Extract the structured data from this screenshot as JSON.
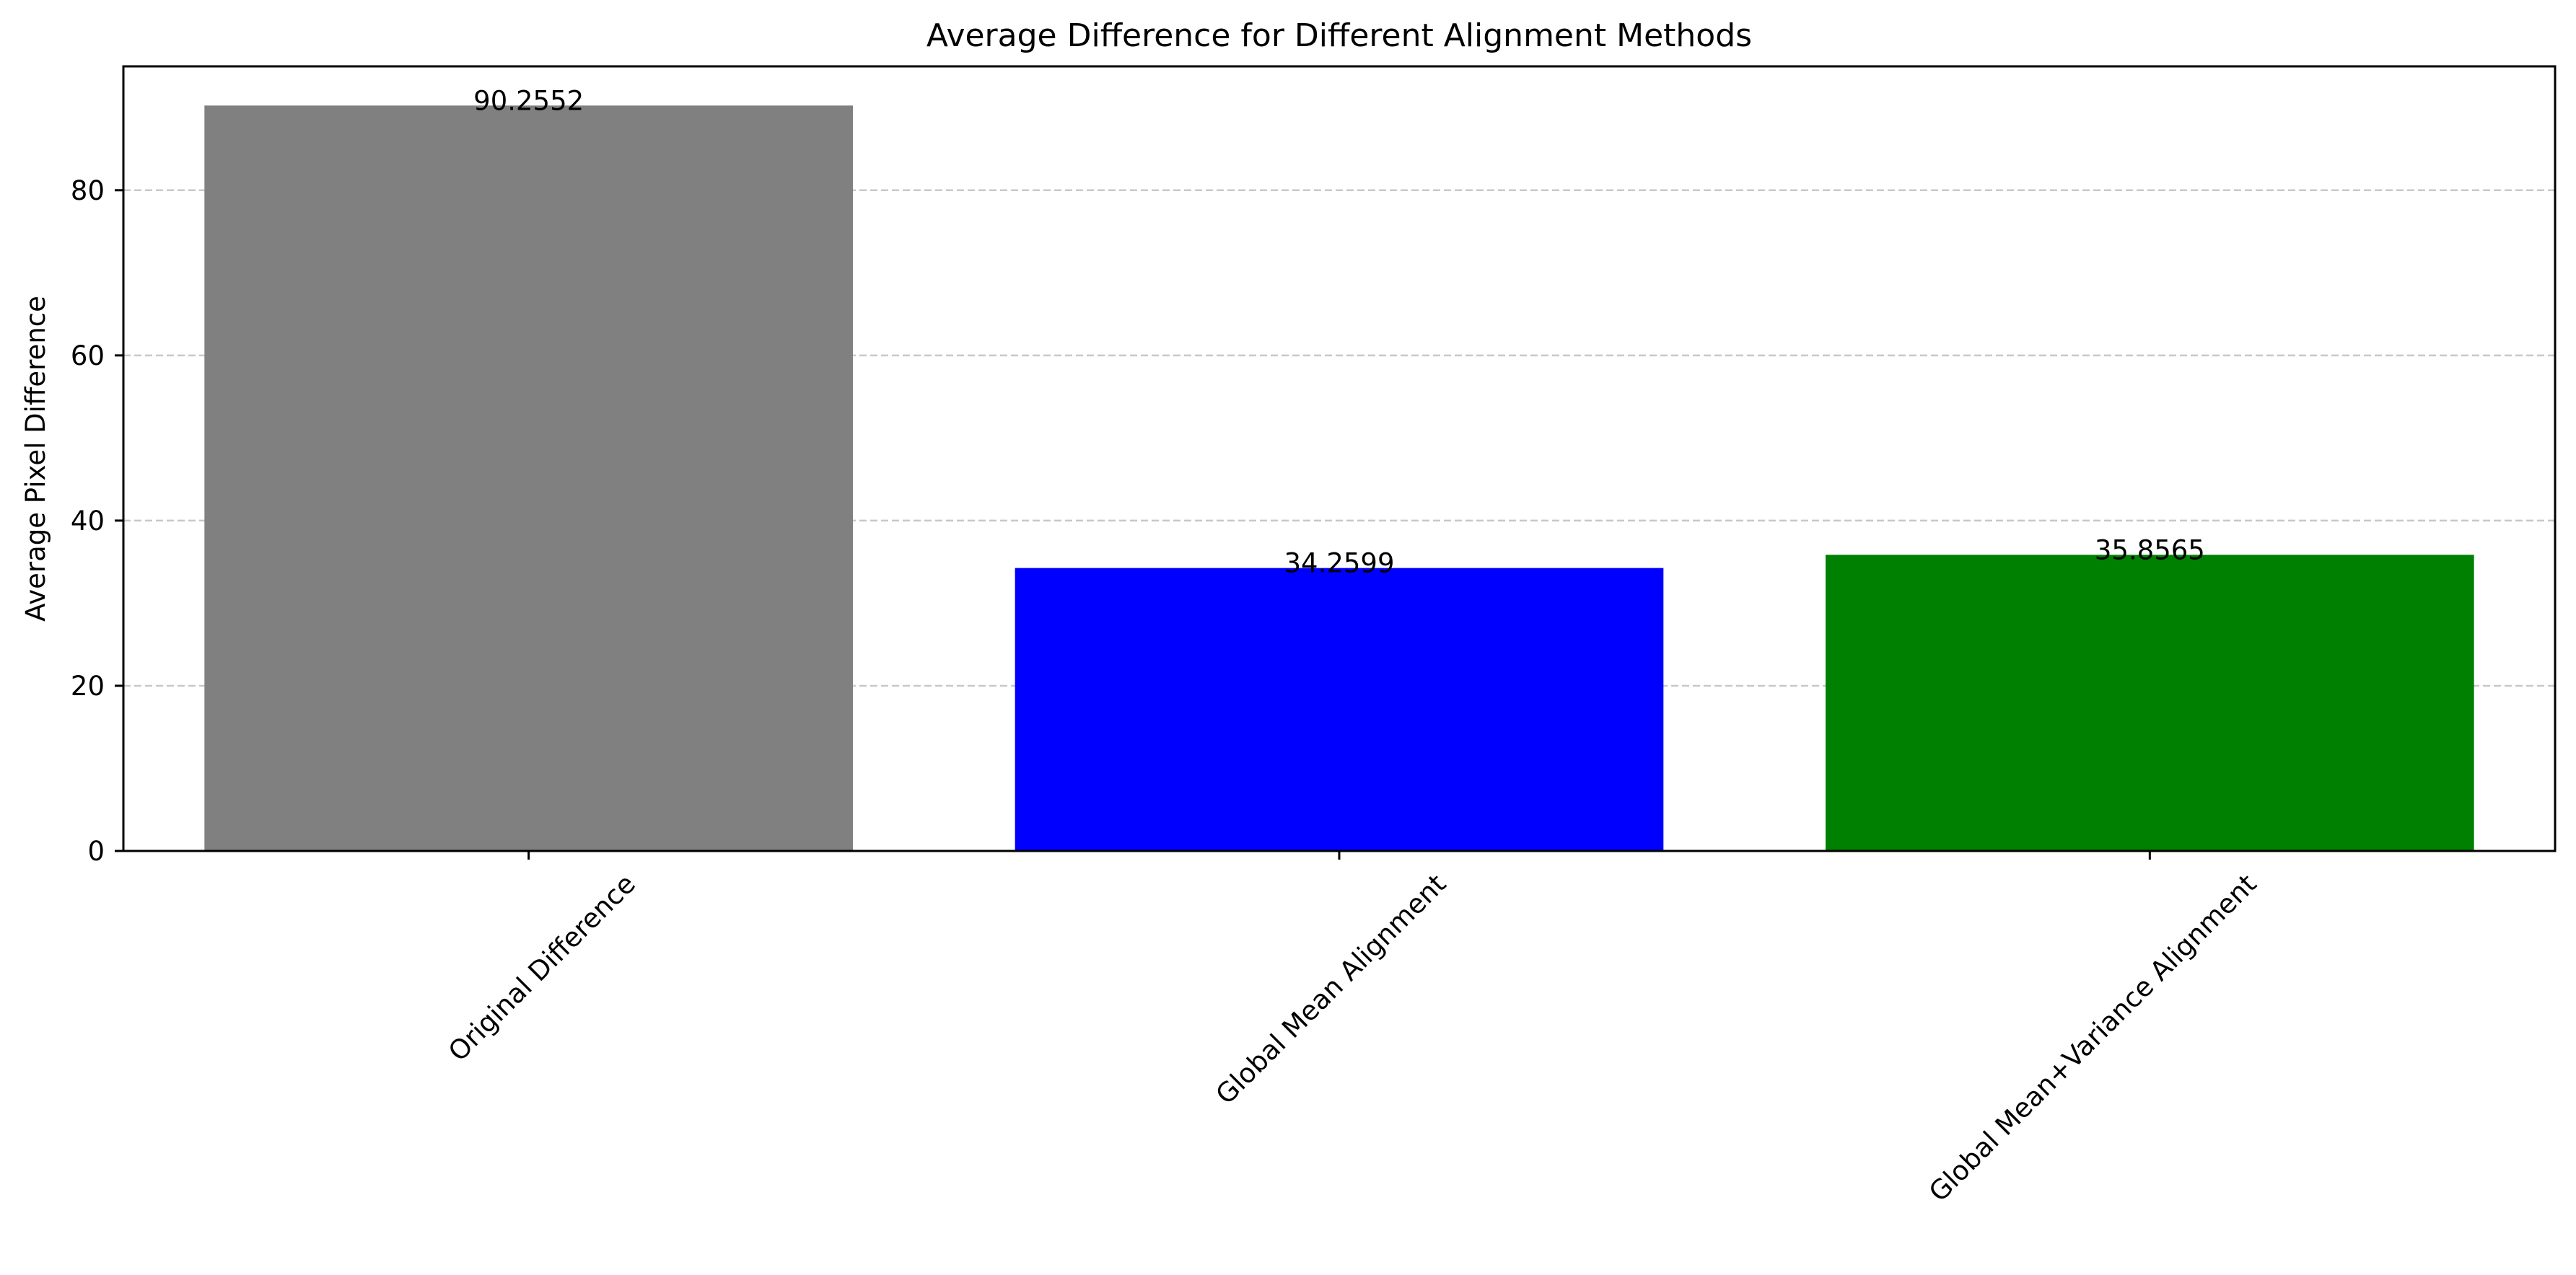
{
  "chart_data": {
    "type": "bar",
    "title": "Average Difference for Different Alignment Methods",
    "xlabel": "",
    "ylabel": "Average Pixel Difference",
    "categories": [
      "Original Difference",
      "Global Mean Alignment",
      "Global Mean+Variance Alignment"
    ],
    "values": [
      90.2552,
      34.2599,
      35.8565
    ],
    "value_labels": [
      "90.2552",
      "34.2599",
      "35.8565"
    ],
    "bar_colors": [
      "#808080",
      "#0000ff",
      "#008000"
    ],
    "ylim": [
      0,
      95
    ],
    "yticks": [
      0,
      20,
      40,
      60,
      80
    ],
    "ytick_labels": [
      "0",
      "20",
      "40",
      "60",
      "80"
    ],
    "grid": {
      "axis": "y",
      "style": "dashed",
      "color": "#c8c8c8"
    },
    "xtick_rotation_deg": 45,
    "legend": "none"
  }
}
